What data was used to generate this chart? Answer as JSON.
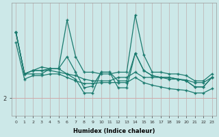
{
  "xlabel": "Humidex (Indice chaleur)",
  "ylabel": "",
  "background_color": "#cce8e8",
  "grid_color_v": "#c0b8b8",
  "grid_color_h": "#d0a8a8",
  "line_color": "#1a7a6e",
  "y_tick_val": 2,
  "ylim_min": 1.0,
  "ylim_max": 7.5,
  "xlim_min": -0.5,
  "xlim_max": 23.5,
  "lines": [
    [
      5.8,
      3.4,
      3.6,
      3.6,
      3.7,
      3.7,
      6.5,
      4.4,
      3.5,
      3.5,
      3.4,
      3.4,
      3.5,
      3.5,
      6.8,
      4.5,
      3.5,
      3.5,
      3.4,
      3.4,
      3.3,
      3.0,
      3.0,
      3.4
    ],
    [
      5.8,
      3.4,
      3.6,
      3.6,
      3.6,
      3.5,
      3.4,
      3.3,
      3.1,
      3.0,
      3.0,
      3.0,
      3.2,
      3.2,
      3.5,
      3.2,
      3.2,
      3.2,
      3.1,
      3.1,
      3.05,
      2.9,
      2.9,
      3.2
    ],
    [
      5.8,
      3.4,
      3.6,
      3.8,
      3.7,
      3.7,
      4.4,
      3.5,
      2.6,
      2.7,
      3.5,
      3.5,
      3.0,
      3.0,
      4.6,
      3.6,
      3.3,
      3.2,
      3.2,
      3.1,
      3.0,
      2.65,
      2.65,
      3.2
    ],
    [
      5.8,
      3.4,
      3.4,
      3.4,
      3.7,
      3.7,
      3.4,
      3.1,
      2.3,
      2.3,
      3.5,
      3.5,
      2.6,
      2.6,
      4.6,
      3.6,
      3.3,
      3.2,
      3.2,
      3.1,
      3.0,
      2.65,
      2.65,
      3.2
    ],
    [
      5.2,
      3.1,
      3.3,
      3.3,
      3.4,
      3.4,
      3.2,
      3.0,
      2.85,
      2.85,
      2.9,
      2.9,
      2.9,
      2.9,
      3.2,
      2.9,
      2.75,
      2.65,
      2.55,
      2.5,
      2.45,
      2.3,
      2.3,
      2.55
    ]
  ]
}
